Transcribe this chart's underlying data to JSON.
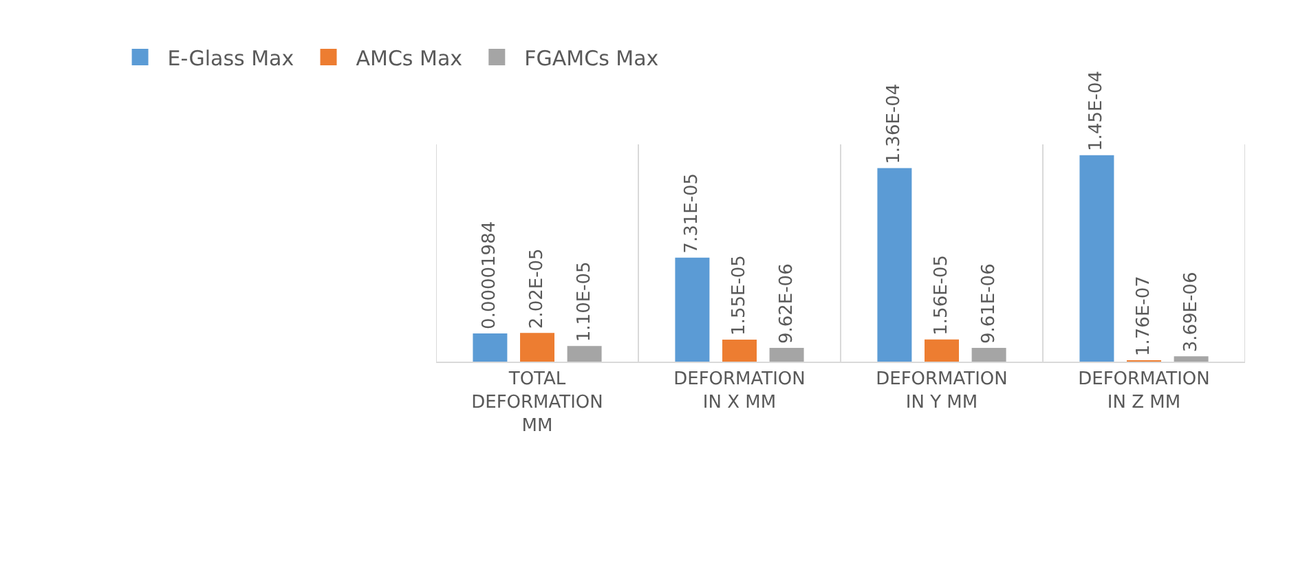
{
  "chart_data": {
    "type": "bar",
    "categories": [
      "TOTAL DEFORMATION MM",
      "DEFORMATION IN X MM",
      "DEFORMATION IN Y MM",
      "DEFORMATION IN Z MM"
    ],
    "series": [
      {
        "name": "E-Glass Max",
        "color": "#5b9bd5",
        "values": [
          1.984e-05,
          7.31e-05,
          0.000136,
          0.000145
        ],
        "value_labels": [
          "0.00001984",
          "7.31E-05",
          "1.36E-04",
          "1.45E-04"
        ]
      },
      {
        "name": "AMCs Max",
        "color": "#ed7d31",
        "values": [
          2.02e-05,
          1.55e-05,
          1.56e-05,
          1.76e-07
        ],
        "value_labels": [
          "2.02E-05",
          "1.55E-05",
          "1.56E-05",
          "1.76E-07"
        ]
      },
      {
        "name": "FGAMCs Max",
        "color": "#a5a5a5",
        "values": [
          1.1e-05,
          9.62e-06,
          9.61e-06,
          3.69e-06
        ],
        "value_labels": [
          "1.10E-05",
          "9.62E-06",
          "9.61E-06",
          "3.69E-06"
        ]
      }
    ],
    "grid": "x",
    "legend": "top left"
  }
}
